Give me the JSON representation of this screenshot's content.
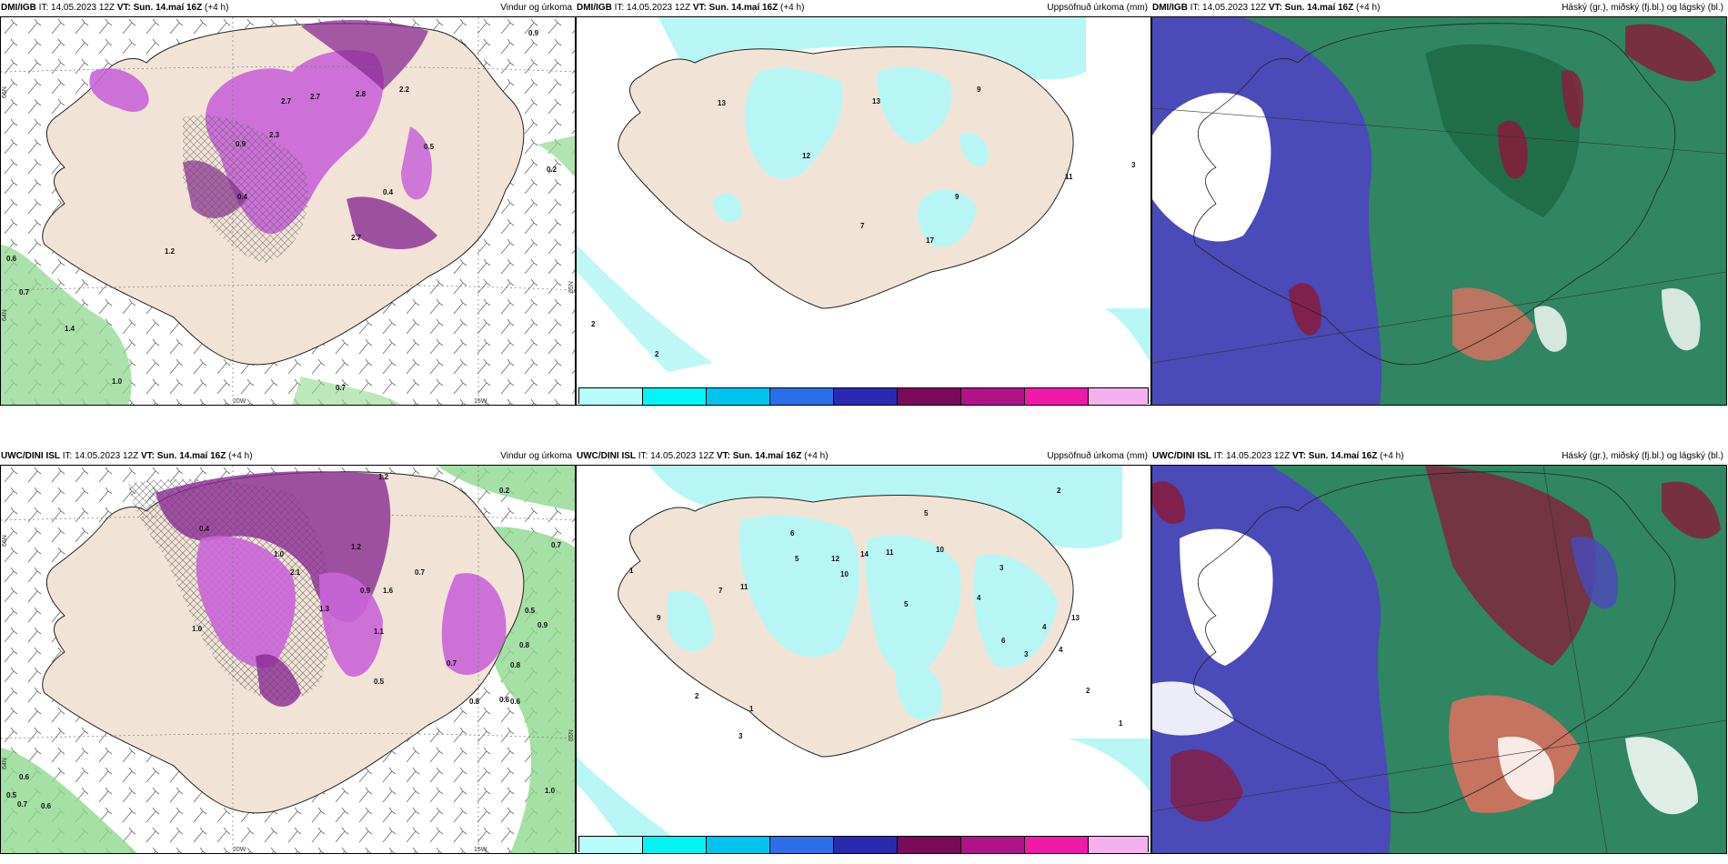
{
  "panels": [
    {
      "model": "DMI/IGB",
      "it_label": "IT:",
      "it_value": "14.05.2023 12Z",
      "vt_label": "VT:",
      "vt_value": "Sun. 14.maí 16Z",
      "offset": "(+4 h)",
      "title": "Vindur og úrkoma"
    },
    {
      "model": "DMI/IGB",
      "it_label": "IT:",
      "it_value": "14.05.2023 12Z",
      "vt_label": "VT:",
      "vt_value": "Sun. 14.maí 16Z",
      "offset": "(+4 h)",
      "title": "Uppsöfnuð úrkoma (mm)"
    },
    {
      "model": "DMI/IGB",
      "it_label": "IT:",
      "it_value": "14.05.2023 12Z",
      "vt_label": "VT:",
      "vt_value": "Sun. 14.maí 16Z",
      "offset": "(+4 h)",
      "title": "Háský (gr.), miðský (fj.bl.) og lágský (bl.)"
    },
    {
      "model": "UWC/DINI ISL",
      "it_label": "IT:",
      "it_value": "14.05.2023 12Z",
      "vt_label": "VT:",
      "vt_value": "Sun. 14.maí 16Z",
      "offset": "(+4 h)",
      "title": "Vindur og úrkoma"
    },
    {
      "model": "UWC/DINI ISL",
      "it_label": "IT:",
      "it_value": "14.05.2023 12Z",
      "vt_label": "VT:",
      "vt_value": "Sun. 14.maí 16Z",
      "offset": "(+4 h)",
      "title": "Uppsöfnuð úrkoma (mm)"
    },
    {
      "model": "UWC/DINI ISL",
      "it_label": "IT:",
      "it_value": "14.05.2023 12Z",
      "vt_label": "VT:",
      "vt_value": "Sun. 14.maí 16Z",
      "offset": "(+4 h)",
      "title": "Háský (gr.), miðský (fj.bl.) og lágský (bl.)"
    }
  ],
  "axes": {
    "lat_66": "66N",
    "lat_64": "64N",
    "lat_65": "65N",
    "lon_20": "20W",
    "lon_15": "15W"
  },
  "colorbar": {
    "ticks": [
      "1",
      "10",
      "25",
      "50",
      "75",
      "100",
      "150",
      "200",
      "400"
    ],
    "colors": [
      "#b8fbfb",
      "#00f5f5",
      "#00c4f0",
      "#2a6ee8",
      "#2a2ab0",
      "#7a0a5a",
      "#b0128a",
      "#f01aaa",
      "#f5b0f0"
    ]
  },
  "colors": {
    "land": "#f1e4d6",
    "wind_precip": "#c964d9",
    "wind_precip_dark": "#8a2a92",
    "sea_precip": "#8fd88f",
    "accum": "#b8f6f6",
    "cloud_high": "#4a4ab8",
    "cloud_mid": "#2e8a5a",
    "cloud_low": "#8a1a3a"
  },
  "values": {
    "p1": [
      "0.9",
      "2.7",
      "2.7",
      "2.8",
      "2.2",
      "0.5",
      "2.3",
      "0.9",
      "0.4",
      "0.4",
      "2.7",
      "0.6",
      "0.7",
      "1.4",
      "1.0",
      "0.7",
      "0.2",
      "1.2"
    ],
    "p2": [
      "13",
      "13",
      "9",
      "12",
      "11",
      "3",
      "9",
      "7",
      "17",
      "2",
      "2",
      "2"
    ],
    "p4": [
      "0.2",
      "1.2",
      "0.4",
      "1.0",
      "1.2",
      "2.1",
      "1.6",
      "1.3",
      "1.1",
      "0.7",
      "0.5",
      "0.9",
      "1.0",
      "0.8",
      "0.7",
      "0.6",
      "0.6",
      "0.5",
      "0.7",
      "0.6",
      "1.0",
      "0.8",
      "0.6",
      "0.7",
      "0.5",
      "0.9",
      "0.8"
    ],
    "p5": [
      "2",
      "5",
      "6",
      "12",
      "10",
      "14",
      "11",
      "10",
      "5",
      "7",
      "11",
      "3",
      "4",
      "9",
      "5",
      "6",
      "13",
      "4",
      "3",
      "4",
      "1",
      "2",
      "1",
      "3",
      "2",
      "1"
    ]
  }
}
